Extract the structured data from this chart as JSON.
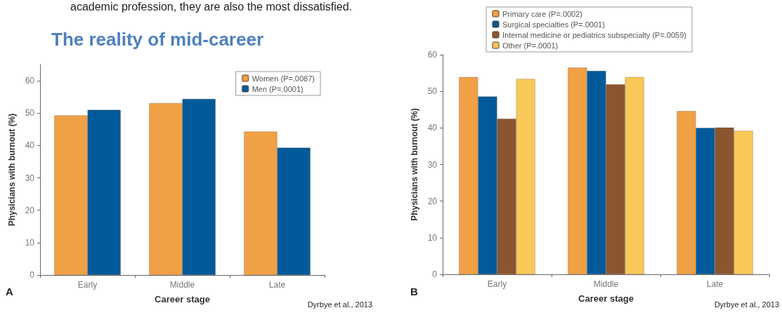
{
  "chart_data": [
    {
      "type": "bar",
      "title": "The reality of mid-career",
      "xlabel": "Career stage",
      "ylabel": "Physicians with burnout (%)",
      "categories": [
        "Early",
        "Middle",
        "Late"
      ],
      "series": [
        {
          "name": "Women (P=.0087)",
          "color": "#f0a045",
          "values": [
            49.3,
            53.1,
            44.3
          ]
        },
        {
          "name": "Men (P=.0001)",
          "color": "#035a9a",
          "values": [
            51.0,
            54.4,
            39.3
          ]
        }
      ],
      "ylim": [
        0,
        65
      ],
      "yticks": [
        0,
        10,
        20,
        30,
        40,
        50,
        60
      ],
      "grid": false,
      "legend": "top right",
      "annotations": [
        "academic profession, they are also the most dissatisfied.",
        "A",
        "Dyrbye et al., 2013"
      ]
    },
    {
      "type": "bar",
      "xlabel": "Career stage",
      "ylabel": "Physicians with burnout (%)",
      "categories": [
        "Early",
        "Middle",
        "Late"
      ],
      "series": [
        {
          "name": "Primary care (P=.0002)",
          "color": "#f0a045",
          "values": [
            53.9,
            56.5,
            44.6
          ]
        },
        {
          "name": "Surgical specialties (P=.0001)",
          "color": "#035a9a",
          "values": [
            48.6,
            55.6,
            40.0
          ]
        },
        {
          "name": "Internal medicine or pediatrics subspecialty (P=.0059)",
          "color": "#8b5530",
          "values": [
            42.5,
            51.9,
            40.1
          ]
        },
        {
          "name": "Other (P=.0001)",
          "color": "#f8c858",
          "values": [
            53.4,
            53.9,
            39.2
          ]
        }
      ],
      "ylim": [
        0,
        60
      ],
      "yticks": [
        0,
        10,
        20,
        30,
        40,
        50,
        60
      ],
      "grid": false,
      "legend": "top",
      "annotations": [
        "B",
        "Dyrbye et al., 2013"
      ]
    }
  ]
}
